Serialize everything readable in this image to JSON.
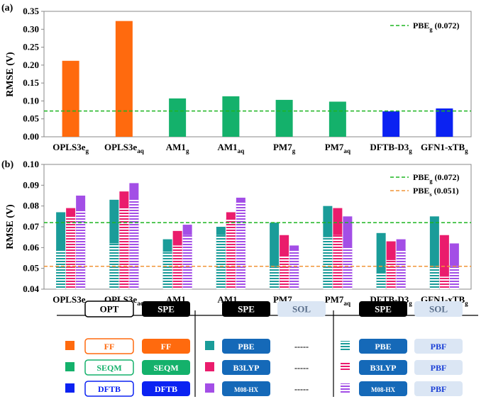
{
  "chart_data": [
    {
      "panel_label": "(a)",
      "type": "bar",
      "ylabel": "RMSE (V)",
      "ylim": [
        0,
        0.35
      ],
      "yticks": [
        "0.00",
        "0.05",
        "0.10",
        "0.15",
        "0.20",
        "0.25",
        "0.30",
        "0.35"
      ],
      "categories": [
        {
          "base": "OPLS3e",
          "sub": "g"
        },
        {
          "base": "OPLS3e",
          "sub": "aq"
        },
        {
          "base": "AM1",
          "sub": "g"
        },
        {
          "base": "AM1",
          "sub": "aq"
        },
        {
          "base": "PM7",
          "sub": "g"
        },
        {
          "base": "PM7",
          "sub": "aq"
        },
        {
          "base": "DFTB-D3",
          "sub": "g"
        },
        {
          "base": "GFN1-xTB",
          "sub": "g"
        }
      ],
      "values": [
        0.212,
        0.323,
        0.107,
        0.113,
        0.103,
        0.098,
        0.071,
        0.079
      ],
      "bar_groups": [
        "FF",
        "FF",
        "SEQM",
        "SEQM",
        "SEQM",
        "SEQM",
        "DFTB",
        "DFTB"
      ],
      "reference_lines": [
        {
          "base": "PBE",
          "sub": "g",
          "tail": " (0.072)",
          "value": 0.072,
          "color": "#1db521"
        }
      ],
      "legend_position": "top-right"
    },
    {
      "panel_label": "(b)",
      "type": "bar",
      "ylabel": "RMSE (V)",
      "ylim": [
        0.04,
        0.1
      ],
      "yticks": [
        "0.04",
        "0.05",
        "0.06",
        "0.07",
        "0.08",
        "0.09",
        "0.10"
      ],
      "categories": [
        {
          "base": "OPLS3e",
          "sub": "g"
        },
        {
          "base": "OPLS3e",
          "sub": "aq"
        },
        {
          "base": "AM1",
          "sub": "g"
        },
        {
          "base": "AM1",
          "sub": "aq"
        },
        {
          "base": "PM7",
          "sub": "g"
        },
        {
          "base": "PM7",
          "sub": "aq"
        },
        {
          "base": "DFTB-D3",
          "sub": "g"
        },
        {
          "base": "GFN1-xTB",
          "sub": "g"
        }
      ],
      "series": [
        {
          "name": "PBE",
          "color": "#1a9c99",
          "spe": [
            0.077,
            0.083,
            0.064,
            0.07,
            0.072,
            0.08,
            0.067,
            0.075
          ],
          "sol": [
            0.059,
            0.062,
            0.058,
            0.066,
            0.051,
            0.065,
            0.048,
            0.051
          ]
        },
        {
          "name": "B3LYP",
          "color": "#ea1c6c",
          "spe": [
            0.079,
            0.087,
            0.068,
            0.077,
            0.066,
            0.079,
            0.063,
            0.066
          ],
          "sol": [
            0.075,
            0.079,
            0.061,
            0.074,
            0.056,
            0.066,
            0.054,
            0.046
          ]
        },
        {
          "name": "M08-HX",
          "color": "#a34ee6",
          "spe": [
            0.085,
            0.091,
            0.071,
            0.084,
            0.061,
            0.075,
            0.064,
            0.062
          ],
          "sol": [
            0.078,
            0.083,
            0.066,
            0.082,
            0.059,
            0.06,
            0.059,
            0.051
          ]
        }
      ],
      "reference_lines": [
        {
          "base": "PBE",
          "sub": "g",
          "tail": " (0.072)",
          "value": 0.072,
          "color": "#1db521"
        },
        {
          "base": "PBE",
          "sub": "s",
          "tail": " (0.051)",
          "value": 0.051,
          "color": "#f19437"
        }
      ],
      "legend_position": "top-right"
    }
  ],
  "group_colors": {
    "FF": "#ff6a0e",
    "SEQM": "#14b16b",
    "DFTB": "#0b22f2"
  },
  "legend_table": {
    "col1_headers": [
      "OPT",
      "SPE"
    ],
    "col2_headers": [
      "SPE",
      "SOL"
    ],
    "col3_headers": [
      "SPE",
      "SOL"
    ],
    "rows": [
      {
        "opt": "FF",
        "spe": "FF",
        "method": "PBE",
        "sol_plain": "-----",
        "sol_solvated": "PBF"
      },
      {
        "opt": "SEQM",
        "spe": "SEQM",
        "method": "B3LYP",
        "sol_plain": "-----",
        "sol_solvated": "PBF"
      },
      {
        "opt": "DFTB",
        "spe": "DFTB",
        "method": "M08-HX",
        "sol_plain": "-----",
        "sol_solvated": "PBF"
      }
    ],
    "colors": {
      "spe_header": "#000000",
      "sol_pill": "#dbe6f4",
      "sol_text": "#1a3fd6",
      "method_pill": "#1569b8"
    }
  }
}
